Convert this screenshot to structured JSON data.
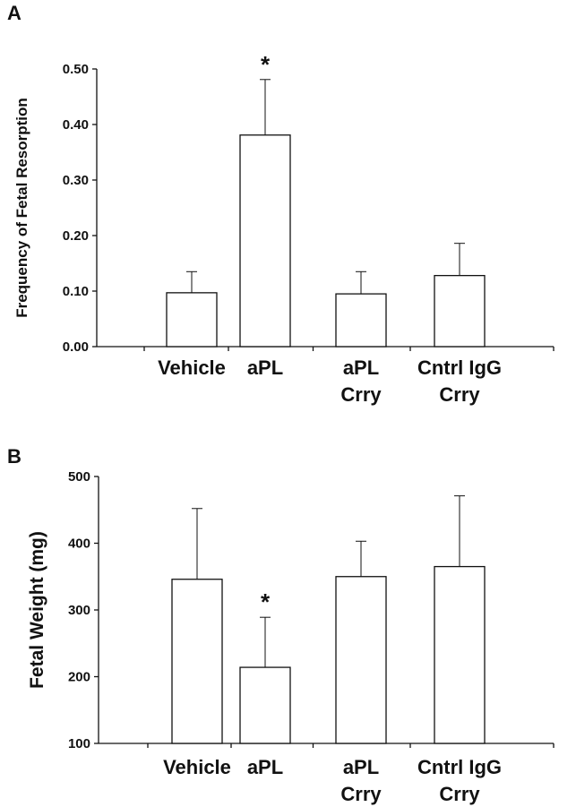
{
  "chart_data": [
    {
      "panel": "A",
      "type": "bar",
      "ylabel": "Frequency of Fetal Resorption",
      "ylim": [
        0,
        0.5
      ],
      "yticks": [
        "0.00",
        "0.10",
        "0.20",
        "0.30",
        "0.40",
        "0.50"
      ],
      "categories": [
        [
          "Vehicle"
        ],
        [
          "aPL"
        ],
        [
          "aPL",
          "Crry"
        ],
        [
          "Cntrl IgG",
          "Crry"
        ]
      ],
      "values": [
        0.097,
        0.381,
        0.095,
        0.128
      ],
      "errors": [
        0.038,
        0.1,
        0.04,
        0.058
      ],
      "significance": [
        "",
        "*",
        "",
        ""
      ]
    },
    {
      "panel": "B",
      "type": "bar",
      "ylabel": "Fetal Weight (mg)",
      "ylim": [
        100,
        500
      ],
      "yticks": [
        "100",
        "200",
        "300",
        "400",
        "500"
      ],
      "categories": [
        [
          "Vehicle"
        ],
        [
          "aPL"
        ],
        [
          "aPL",
          "Crry"
        ],
        [
          "Cntrl IgG",
          "Crry"
        ]
      ],
      "values": [
        346,
        214,
        350,
        365
      ],
      "errors": [
        106,
        75,
        53,
        106
      ],
      "significance": [
        "",
        "*",
        "",
        ""
      ]
    }
  ]
}
